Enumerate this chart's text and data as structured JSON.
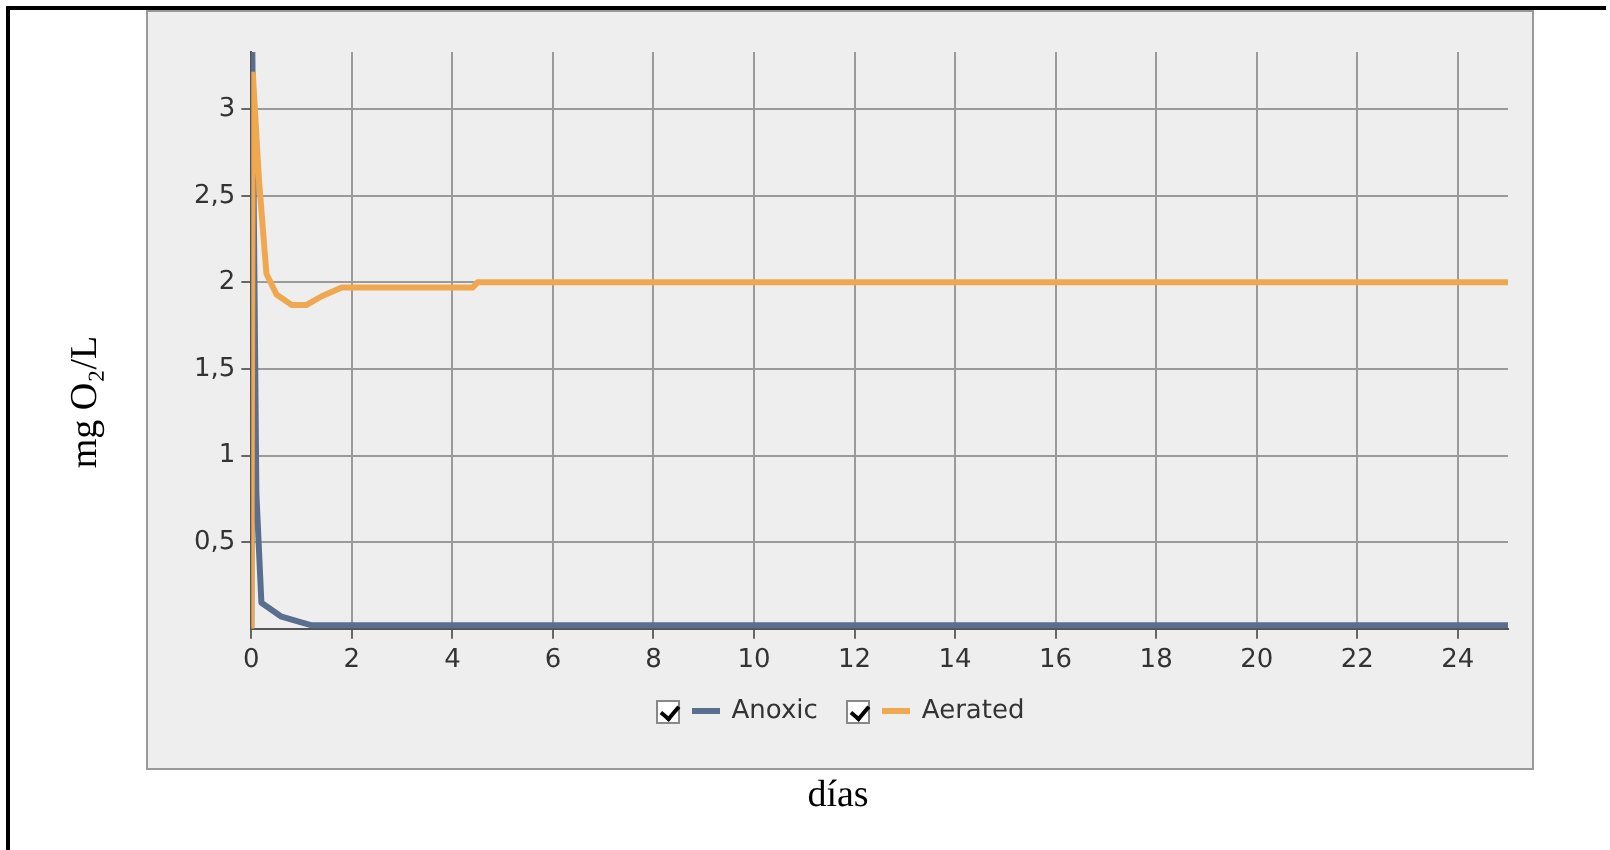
{
  "chart_data": {
    "type": "line",
    "xlabel": "días",
    "ylabel": "mg O₂/L",
    "xlim": [
      0,
      25
    ],
    "ylim": [
      0,
      3.33
    ],
    "xticks": [
      0,
      2,
      4,
      6,
      8,
      10,
      12,
      14,
      16,
      18,
      20,
      22,
      24
    ],
    "yticks": [
      {
        "value": 0.5,
        "label": "0,5"
      },
      1,
      {
        "value": 1.5,
        "label": "1,5"
      },
      2,
      {
        "value": 2.5,
        "label": "2,5"
      },
      3
    ],
    "grid": true,
    "legend": "bottom",
    "marker": "none",
    "line_style": "solid",
    "series": [
      {
        "name": "Anoxic",
        "color": "#5a6f8f",
        "x": [
          0,
          0.02,
          0.1,
          0.2,
          0.6,
          1.2,
          25
        ],
        "values": [
          0,
          3.33,
          0.78,
          0.15,
          0.07,
          0.02,
          0.02
        ]
      },
      {
        "name": "Aerated",
        "color": "#f0a850",
        "x": [
          0,
          0.03,
          0.15,
          0.3,
          0.5,
          0.8,
          1.1,
          1.4,
          1.8,
          4.4,
          4.5,
          25
        ],
        "values": [
          0,
          3.2,
          2.6,
          2.05,
          1.93,
          1.87,
          1.87,
          1.92,
          1.97,
          1.97,
          2.0,
          2.0
        ]
      }
    ]
  }
}
